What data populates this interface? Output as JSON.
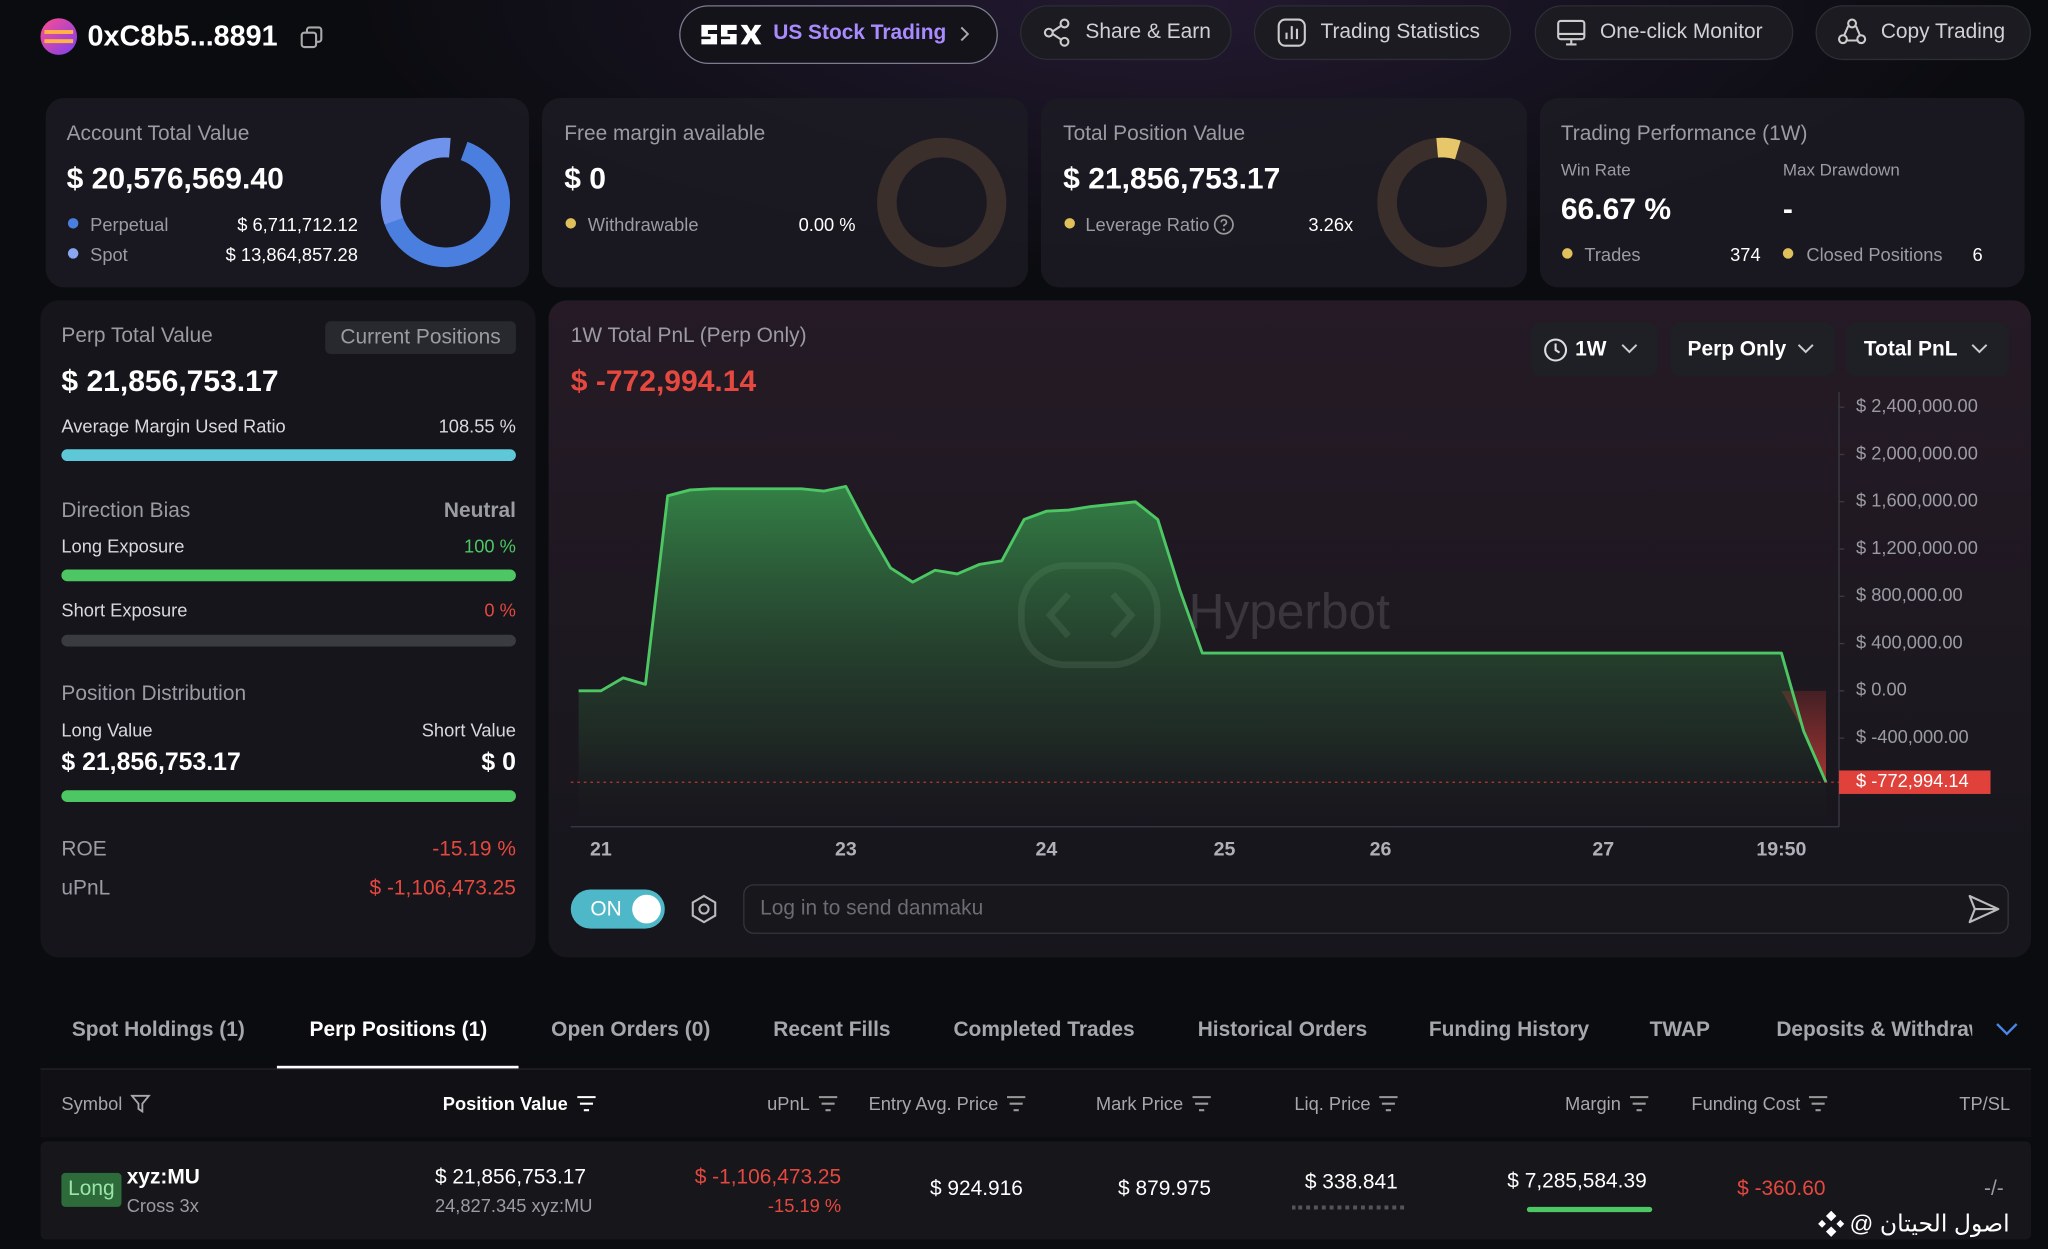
{
  "header": {
    "address": "0xC8b5...8891",
    "nav": [
      "US Stock Trading",
      "Share & Earn",
      "Trading Statistics",
      "One-click Monitor",
      "Copy Trading"
    ]
  },
  "summary": {
    "account": {
      "title": "Account Total Value",
      "value": "$ 20,576,569.40",
      "rows": [
        {
          "label": "Perpetual",
          "value": "$ 6,711,712.12"
        },
        {
          "label": "Spot",
          "value": "$ 13,864,857.28"
        }
      ]
    },
    "margin": {
      "title": "Free margin available",
      "value": "$ 0",
      "rows": [
        {
          "label": "Withdrawable",
          "value": "0.00 %"
        }
      ]
    },
    "position": {
      "title": "Total Position Value",
      "value": "$ 21,856,753.17",
      "rows": [
        {
          "label": "Leverage Ratio",
          "value": "3.26x"
        }
      ]
    },
    "performance": {
      "title": "Trading Performance (1W)",
      "stats": [
        {
          "label": "Win Rate",
          "value": "66.67 %"
        },
        {
          "label": "Max Drawdown",
          "value": "-"
        }
      ],
      "rows": [
        {
          "label": "Trades",
          "value": "374"
        },
        {
          "label": "Closed Positions",
          "value": "6"
        }
      ]
    }
  },
  "perp": {
    "title": "Perp Total Value",
    "tag": "Current Positions",
    "value": "$ 21,856,753.17",
    "margin_ratio_label": "Average Margin Used Ratio",
    "margin_ratio": "108.55 %",
    "bias_label": "Direction Bias",
    "bias": "Neutral",
    "long_label": "Long Exposure",
    "long": "100 %",
    "short_label": "Short Exposure",
    "short": "0 %",
    "dist_title": "Position Distribution",
    "long_value_label": "Long Value",
    "short_value_label": "Short Value",
    "long_value": "$ 21,856,753.17",
    "short_value": "$ 0",
    "roe_label": "ROE",
    "roe": "-15.19 %",
    "upnl_label": "uPnL",
    "upnl": "$ -1,106,473.25"
  },
  "chart_data": {
    "type": "area",
    "title": "1W Total PnL (Perp Only)",
    "subtitle": "$ -772,994.14",
    "watermark": "Hyperbot",
    "categories": [
      null,
      "21",
      null,
      null,
      null,
      null,
      null,
      null,
      null,
      null,
      null,
      null,
      "23",
      null,
      null,
      null,
      null,
      null,
      null,
      null,
      null,
      "24",
      null,
      null,
      null,
      null,
      null,
      null,
      null,
      "25",
      null,
      null,
      null,
      null,
      null,
      null,
      "26",
      null,
      null,
      null,
      null,
      null,
      null,
      null,
      null,
      null,
      "27",
      null,
      null,
      null,
      null,
      null,
      null,
      null,
      "19:50",
      null,
      null
    ],
    "values": [
      0,
      0,
      110000,
      55000,
      1650000,
      1700000,
      1710000,
      1710000,
      1710000,
      1710000,
      1710000,
      1690000,
      1730000,
      1370000,
      1040000,
      920000,
      1020000,
      990000,
      1070000,
      1100000,
      1450000,
      1520000,
      1530000,
      1560000,
      1580000,
      1600000,
      1450000,
      850000,
      320000,
      320000,
      320000,
      320000,
      320000,
      320000,
      320000,
      320000,
      320000,
      320000,
      320000,
      320000,
      320000,
      320000,
      320000,
      320000,
      320000,
      320000,
      320000,
      320000,
      320000,
      320000,
      320000,
      320000,
      320000,
      320000,
      320000,
      -340000,
      -772994.14
    ],
    "last_label": "$ -772,994.14",
    "ylim": [
      -1150000,
      2530000
    ],
    "yticks": [
      {
        "value": 2400000,
        "label": "$ 2,400,000.00"
      },
      {
        "value": 2000000,
        "label": "$ 2,000,000.00"
      },
      {
        "value": 1600000,
        "label": "$ 1,600,000.00"
      },
      {
        "value": 1200000,
        "label": "$ 1,200,000.00"
      },
      {
        "value": 800000,
        "label": "$ 800,000.00"
      },
      {
        "value": 400000,
        "label": "$ 400,000.00"
      },
      {
        "value": 0,
        "label": "$ 0.00"
      },
      {
        "value": -400000,
        "label": "$ -400,000.00"
      }
    ],
    "grid": false,
    "color": "#4cc764",
    "negative_color": "#e0413a"
  },
  "pnl_panel": {
    "filters": [
      "1W",
      "Perp Only",
      "Total PnL"
    ],
    "toggle": "ON",
    "danmaku_placeholder": "Log in to send danmaku"
  },
  "tabs": {
    "items": [
      "Spot Holdings (1)",
      "Perp Positions (1)",
      "Open Orders (0)",
      "Recent Fills",
      "Completed Trades",
      "Historical Orders",
      "Funding History",
      "TWAP",
      "Deposits & Withdraw"
    ],
    "active": 1
  },
  "table": {
    "columns": [
      "Symbol",
      "Position Value",
      "uPnL",
      "Entry Avg. Price",
      "Mark Price",
      "Liq. Price",
      "Margin",
      "Funding Cost",
      "TP/SL"
    ],
    "rows": [
      {
        "side": "Long",
        "symbol": "xyz:MU",
        "mode": "Cross 3x",
        "position_value": "$ 21,856,753.17",
        "size": "24,827.345 xyz:MU",
        "upnl": "$ -1,106,473.25",
        "upnl_pct": "-15.19 %",
        "entry": "$ 924.916",
        "mark": "$ 879.975",
        "liq": "$ 338.841",
        "margin": "$ 7,285,584.39",
        "funding": "$ -360.60",
        "tpsl": "-/-"
      }
    ]
  },
  "credit": "@ اصول الحيتان"
}
